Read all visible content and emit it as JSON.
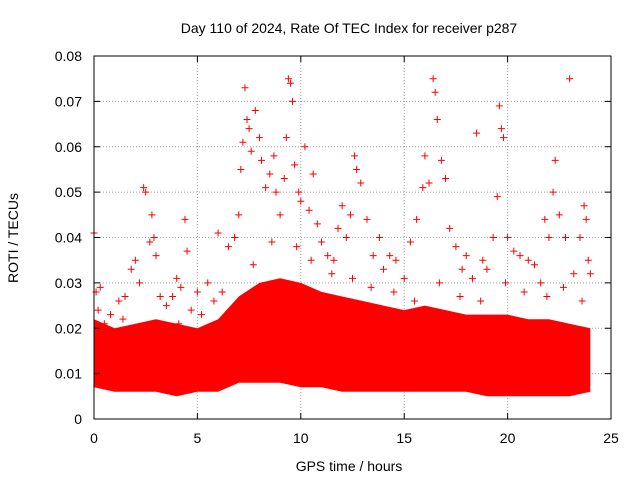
{
  "chart_data": {
    "type": "scatter",
    "title": "Day 110 of 2024, Rate Of TEC Index for receiver p287",
    "xlabel": "GPS time / hours",
    "ylabel": "ROTI / TECUs",
    "xlim": [
      0,
      25
    ],
    "ylim": [
      0,
      0.08
    ],
    "xticks": [
      0,
      5,
      10,
      15,
      20,
      25
    ],
    "yticks": [
      0,
      0.01,
      0.02,
      0.03,
      0.04,
      0.05,
      0.06,
      0.07,
      0.08
    ],
    "xtick_labels": [
      "0",
      "5",
      "10",
      "15",
      "20",
      "25"
    ],
    "ytick_labels": [
      "0",
      "0.01",
      "0.02",
      "0.03",
      "0.04",
      "0.05",
      "0.06",
      "0.07",
      "0.08"
    ],
    "grid": true,
    "marker": "plus",
    "color": "#ff0000",
    "data_range_x": [
      0,
      24
    ],
    "points": [
      [
        0.0,
        0.041
      ],
      [
        0.1,
        0.028
      ],
      [
        0.2,
        0.024
      ],
      [
        0.3,
        0.029
      ],
      [
        0.5,
        0.021
      ],
      [
        0.8,
        0.023
      ],
      [
        1.0,
        0.018
      ],
      [
        1.2,
        0.026
      ],
      [
        1.5,
        0.027
      ],
      [
        1.8,
        0.033
      ],
      [
        2.0,
        0.035
      ],
      [
        2.2,
        0.03
      ],
      [
        2.4,
        0.051
      ],
      [
        2.5,
        0.05
      ],
      [
        2.7,
        0.039
      ],
      [
        2.8,
        0.045
      ],
      [
        2.9,
        0.04
      ],
      [
        3.0,
        0.036
      ],
      [
        3.2,
        0.027
      ],
      [
        3.5,
        0.025
      ],
      [
        3.8,
        0.027
      ],
      [
        4.0,
        0.031
      ],
      [
        4.2,
        0.029
      ],
      [
        4.4,
        0.044
      ],
      [
        4.5,
        0.037
      ],
      [
        4.7,
        0.024
      ],
      [
        5.0,
        0.028
      ],
      [
        5.2,
        0.023
      ],
      [
        5.5,
        0.03
      ],
      [
        5.8,
        0.026
      ],
      [
        6.0,
        0.041
      ],
      [
        6.2,
        0.028
      ],
      [
        6.5,
        0.038
      ],
      [
        6.8,
        0.04
      ],
      [
        7.0,
        0.045
      ],
      [
        7.1,
        0.055
      ],
      [
        7.2,
        0.061
      ],
      [
        7.3,
        0.073
      ],
      [
        7.4,
        0.066
      ],
      [
        7.5,
        0.064
      ],
      [
        7.6,
        0.059
      ],
      [
        7.8,
        0.068
      ],
      [
        8.0,
        0.062
      ],
      [
        8.1,
        0.057
      ],
      [
        8.3,
        0.051
      ],
      [
        8.5,
        0.054
      ],
      [
        8.7,
        0.058
      ],
      [
        8.8,
        0.05
      ],
      [
        9.0,
        0.045
      ],
      [
        9.2,
        0.053
      ],
      [
        9.3,
        0.062
      ],
      [
        9.4,
        0.075
      ],
      [
        9.5,
        0.074
      ],
      [
        9.6,
        0.07
      ],
      [
        9.7,
        0.056
      ],
      [
        9.9,
        0.05
      ],
      [
        10.0,
        0.048
      ],
      [
        10.2,
        0.06
      ],
      [
        10.4,
        0.046
      ],
      [
        10.6,
        0.054
      ],
      [
        10.8,
        0.043
      ],
      [
        11.0,
        0.039
      ],
      [
        11.3,
        0.036
      ],
      [
        11.6,
        0.035
      ],
      [
        11.8,
        0.042
      ],
      [
        12.0,
        0.047
      ],
      [
        12.2,
        0.04
      ],
      [
        12.4,
        0.045
      ],
      [
        12.6,
        0.058
      ],
      [
        12.7,
        0.055
      ],
      [
        12.9,
        0.052
      ],
      [
        13.2,
        0.044
      ],
      [
        13.5,
        0.036
      ],
      [
        13.8,
        0.04
      ],
      [
        14.0,
        0.033
      ],
      [
        14.3,
        0.036
      ],
      [
        14.6,
        0.035
      ],
      [
        15.0,
        0.031
      ],
      [
        15.3,
        0.039
      ],
      [
        15.6,
        0.044
      ],
      [
        15.9,
        0.051
      ],
      [
        16.0,
        0.058
      ],
      [
        16.2,
        0.052
      ],
      [
        16.4,
        0.075
      ],
      [
        16.5,
        0.072
      ],
      [
        16.6,
        0.066
      ],
      [
        16.8,
        0.057
      ],
      [
        17.0,
        0.053
      ],
      [
        17.2,
        0.042
      ],
      [
        17.5,
        0.038
      ],
      [
        17.8,
        0.033
      ],
      [
        18.0,
        0.036
      ],
      [
        18.3,
        0.031
      ],
      [
        18.5,
        0.063
      ],
      [
        18.8,
        0.035
      ],
      [
        19.0,
        0.033
      ],
      [
        19.3,
        0.04
      ],
      [
        19.5,
        0.049
      ],
      [
        19.6,
        0.069
      ],
      [
        19.7,
        0.064
      ],
      [
        19.8,
        0.062
      ],
      [
        20.0,
        0.04
      ],
      [
        20.3,
        0.037
      ],
      [
        20.6,
        0.036
      ],
      [
        21.0,
        0.035
      ],
      [
        21.3,
        0.034
      ],
      [
        21.6,
        0.03
      ],
      [
        21.8,
        0.044
      ],
      [
        22.0,
        0.04
      ],
      [
        22.2,
        0.05
      ],
      [
        22.3,
        0.057
      ],
      [
        22.5,
        0.045
      ],
      [
        22.8,
        0.04
      ],
      [
        23.0,
        0.075
      ],
      [
        23.2,
        0.032
      ],
      [
        23.5,
        0.04
      ],
      [
        23.7,
        0.047
      ],
      [
        23.8,
        0.044
      ],
      [
        23.9,
        0.035
      ],
      [
        24.0,
        0.032
      ],
      [
        0.6,
        0.019
      ],
      [
        1.4,
        0.022
      ],
      [
        2.1,
        0.017
      ],
      [
        3.4,
        0.019
      ],
      [
        4.1,
        0.021
      ],
      [
        5.3,
        0.018
      ],
      [
        6.4,
        0.023
      ],
      [
        7.7,
        0.034
      ],
      [
        8.6,
        0.039
      ],
      [
        9.8,
        0.038
      ],
      [
        10.5,
        0.035
      ],
      [
        11.5,
        0.032
      ],
      [
        12.5,
        0.031
      ],
      [
        13.4,
        0.029
      ],
      [
        14.5,
        0.028
      ],
      [
        15.5,
        0.026
      ],
      [
        16.7,
        0.03
      ],
      [
        17.7,
        0.027
      ],
      [
        18.7,
        0.026
      ],
      [
        19.9,
        0.03
      ],
      [
        20.8,
        0.028
      ],
      [
        21.9,
        0.027
      ],
      [
        22.7,
        0.029
      ],
      [
        23.6,
        0.026
      ]
    ],
    "band_envelope": {
      "x": [
        0,
        1,
        2,
        3,
        4,
        5,
        6,
        7,
        8,
        9,
        10,
        11,
        12,
        13,
        14,
        15,
        16,
        17,
        18,
        19,
        20,
        21,
        22,
        23,
        24
      ],
      "upper": [
        0.022,
        0.02,
        0.021,
        0.022,
        0.021,
        0.02,
        0.022,
        0.027,
        0.03,
        0.031,
        0.03,
        0.028,
        0.027,
        0.026,
        0.025,
        0.024,
        0.025,
        0.024,
        0.023,
        0.023,
        0.023,
        0.022,
        0.022,
        0.021,
        0.02
      ],
      "lower": [
        0.007,
        0.006,
        0.006,
        0.006,
        0.005,
        0.006,
        0.006,
        0.008,
        0.008,
        0.008,
        0.007,
        0.007,
        0.006,
        0.006,
        0.006,
        0.006,
        0.006,
        0.006,
        0.006,
        0.005,
        0.005,
        0.005,
        0.005,
        0.005,
        0.006
      ]
    }
  }
}
